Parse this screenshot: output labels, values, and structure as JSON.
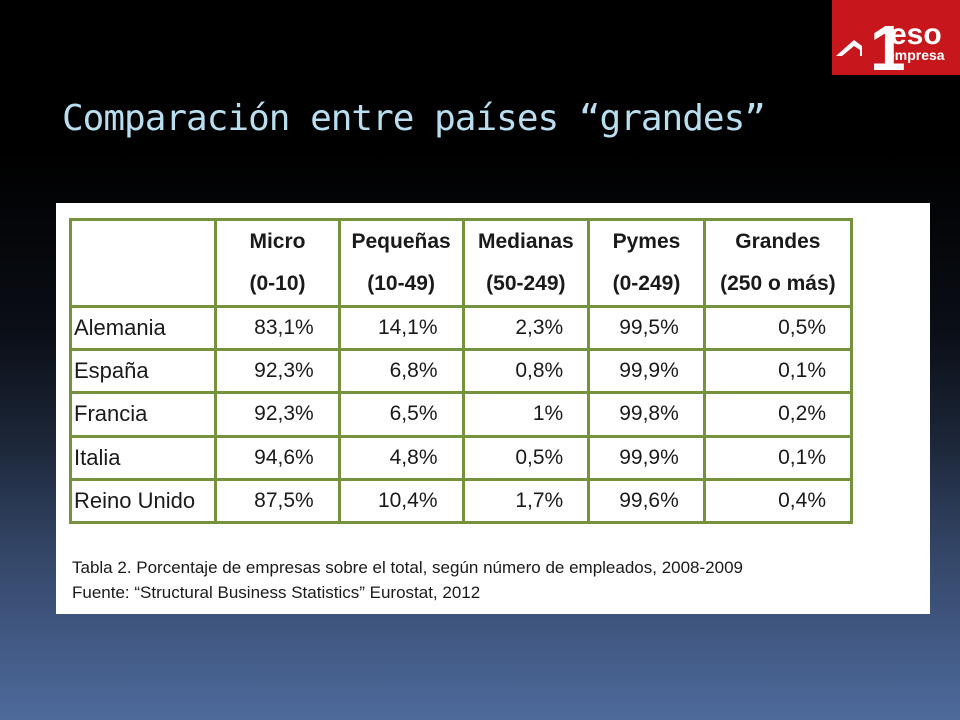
{
  "logo": {
    "number": "1",
    "word_top": "eso",
    "word_bottom": "empresa"
  },
  "slide": {
    "title": "Comparación entre países “grandes”"
  },
  "table": {
    "columns": [
      {
        "line1": "",
        "line2": ""
      },
      {
        "line1": "Micro",
        "line2": "(0-10)"
      },
      {
        "line1": "Pequeñas",
        "line2": "(10-49)"
      },
      {
        "line1": "Medianas",
        "line2": "(50-249)"
      },
      {
        "line1": "Pymes",
        "line2": "(0-249)"
      },
      {
        "line1": "Grandes",
        "line2": "(250 o más)"
      }
    ],
    "rows": [
      {
        "country": "Alemania",
        "values": [
          "83,1%",
          "14,1%",
          "2,3%",
          "99,5%",
          "0,5%"
        ]
      },
      {
        "country": "España",
        "values": [
          "92,3%",
          "6,8%",
          "0,8%",
          "99,9%",
          "0,1%"
        ]
      },
      {
        "country": "Francia",
        "values": [
          "92,3%",
          "6,5%",
          "1%",
          "99,8%",
          "0,2%"
        ]
      },
      {
        "country": "Italia",
        "values": [
          "94,6%",
          "4,8%",
          "0,5%",
          "99,9%",
          "0,1%"
        ]
      },
      {
        "country": "Reino Unido",
        "values": [
          "87,5%",
          "10,4%",
          "1,7%",
          "99,6%",
          "0,4%"
        ]
      }
    ]
  },
  "caption": {
    "line1": "Tabla 2. Porcentaje de empresas sobre el total, según número de empleados, 2008-2009",
    "line2": "Fuente: “Structural Business Statistics” Eurostat, 2012"
  },
  "colors": {
    "title": "#b8def0",
    "logo_red": "#c8161d",
    "table_border": "#77923c"
  }
}
